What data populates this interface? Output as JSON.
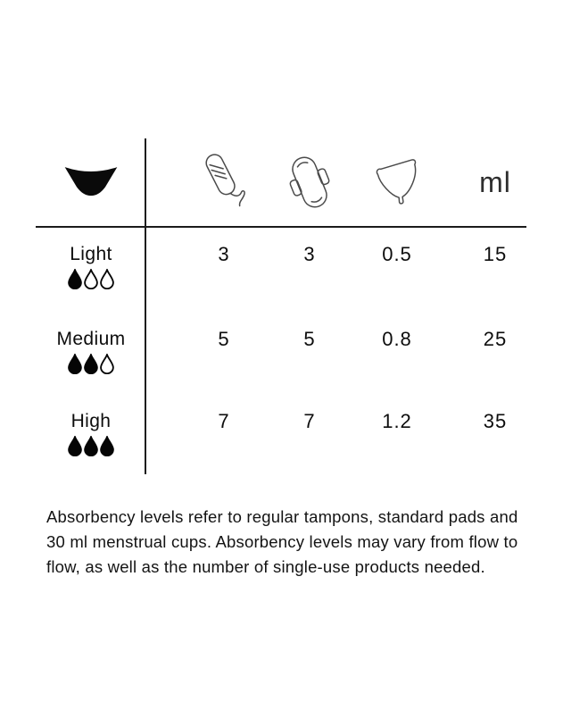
{
  "colors": {
    "ink": "#0d0d0d",
    "line": "#1b1b1b",
    "icon_stroke": "#4a4a4a",
    "background": "#ffffff"
  },
  "header": {
    "row_axis_icon": "underwear",
    "column_icons": [
      "tampon",
      "pad",
      "menstrual-cup"
    ],
    "unit_label": "ml"
  },
  "table": {
    "rows": [
      {
        "label": "Light",
        "drops_filled": 1,
        "drops_total": 3,
        "values": [
          "3",
          "3",
          "0.5",
          "15"
        ]
      },
      {
        "label": "Medium",
        "drops_filled": 2,
        "drops_total": 3,
        "values": [
          "5",
          "5",
          "0.8",
          "25"
        ]
      },
      {
        "label": "High",
        "drops_filled": 3,
        "drops_total": 3,
        "values": [
          "7",
          "7",
          "1.2",
          "35"
        ]
      }
    ]
  },
  "footnote": {
    "lines": [
      "Absorbency levels refer to regular tampons, standard pads and",
      "30 ml menstrual cups. Absorbency levels may vary from flow to",
      "flow, as well as the number of single-use products needed."
    ]
  },
  "chart_data": {
    "type": "table",
    "title": "Absorbency levels per product",
    "row_categories": [
      "Light",
      "Medium",
      "High"
    ],
    "row_flow_drops_filled_of_3": [
      1,
      2,
      3
    ],
    "columns": [
      "tampons (count)",
      "pads (count)",
      "menstrual cups (count)",
      "ml"
    ],
    "values": [
      [
        3,
        3,
        0.5,
        15
      ],
      [
        5,
        5,
        0.8,
        25
      ],
      [
        7,
        7,
        1.2,
        35
      ]
    ],
    "footnote": "Absorbency levels refer to regular tampons, standard pads and 30 ml menstrual cups. Absorbency levels may vary from flow to flow, as well as the number of single-use products needed."
  }
}
